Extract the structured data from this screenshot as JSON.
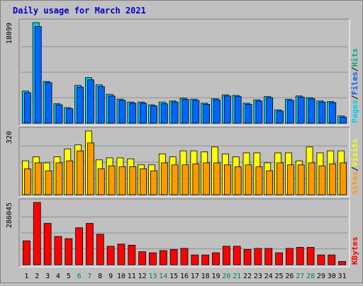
{
  "chart_data": {
    "type": "bar",
    "title": "Daily usage for March 2021",
    "categories": [
      "1",
      "2",
      "3",
      "4",
      "5",
      "6",
      "7",
      "8",
      "9",
      "10",
      "11",
      "12",
      "13",
      "14",
      "15",
      "16",
      "17",
      "18",
      "19",
      "20",
      "21",
      "22",
      "23",
      "24",
      "25",
      "26",
      "27",
      "28",
      "29",
      "30",
      "31"
    ],
    "weekend_days": [
      "6",
      "7",
      "13",
      "14",
      "20",
      "21",
      "27",
      "28"
    ],
    "panels": [
      {
        "id": "hits-files",
        "max_label": "18099",
        "ymax": 18099,
        "series": [
          {
            "name": "Hits",
            "color": "#00ccff",
            "values": [
              5800,
              18099,
              7500,
              3500,
              2800,
              6800,
              8200,
              6900,
              5200,
              4300,
              3800,
              3800,
              3300,
              3800,
              4000,
              4500,
              4300,
              3600,
              4400,
              5100,
              5000,
              3600,
              4200,
              4800,
              2400,
              4300,
              4900,
              4600,
              4000,
              3900,
              1300
            ]
          },
          {
            "name": "Files",
            "color": "#0066ff",
            "values": [
              5500,
              17400,
              7300,
              3300,
              2600,
              6500,
              7800,
              6600,
              4900,
              4100,
              3600,
              3600,
              3100,
              3500,
              3800,
              4300,
              4100,
              3400,
              4200,
              4900,
              4800,
              3400,
              4000,
              4600,
              2200,
              4100,
              4700,
              4400,
              3800,
              3700,
              1100
            ]
          }
        ],
        "legend": [
          "Pages",
          "/",
          "Files",
          "/",
          "Hits"
        ],
        "legend_colors": [
          "#00ccff",
          "#000000",
          "#0066ff",
          "#000000",
          "#00aa88"
        ]
      },
      {
        "id": "visits-sites",
        "max_label": "320",
        "ymax": 320,
        "series": [
          {
            "name": "Visits",
            "color": "#ffff00",
            "values": [
              170,
              190,
              160,
              190,
              230,
              250,
              320,
              175,
              185,
              185,
              180,
              150,
              150,
              205,
              190,
              220,
              220,
              215,
              240,
              205,
              190,
              210,
              210,
              160,
              210,
              210,
              170,
              240,
              210,
              220,
              220
            ]
          },
          {
            "name": "Sites",
            "color": "#ff9900",
            "values": [
              130,
              160,
              120,
              160,
              170,
              220,
              260,
              130,
              145,
              140,
              140,
              130,
              120,
              160,
              150,
              150,
              155,
              160,
              160,
              150,
              140,
              150,
              140,
              120,
              160,
              150,
              150,
              160,
              145,
              155,
              160
            ]
          }
        ],
        "legend": [
          "Sites",
          "/",
          "Visits"
        ],
        "legend_colors": [
          "#ff9900",
          "#000000",
          "#ffff00"
        ]
      },
      {
        "id": "kbytes",
        "max_label": "286045",
        "ymax": 286045,
        "series": [
          {
            "name": "KBytes",
            "color": "#ff0000",
            "values": [
              110000,
              286045,
              190000,
              130000,
              120000,
              170000,
              190000,
              140000,
              85000,
              95000,
              90000,
              60000,
              55000,
              65000,
              70000,
              75000,
              45000,
              45000,
              55000,
              85000,
              85000,
              70000,
              75000,
              75000,
              55000,
              75000,
              80000,
              80000,
              45000,
              45000,
              15000
            ]
          }
        ],
        "legend": [
          "KBytes"
        ],
        "legend_colors": [
          "#ff0000"
        ]
      }
    ]
  }
}
